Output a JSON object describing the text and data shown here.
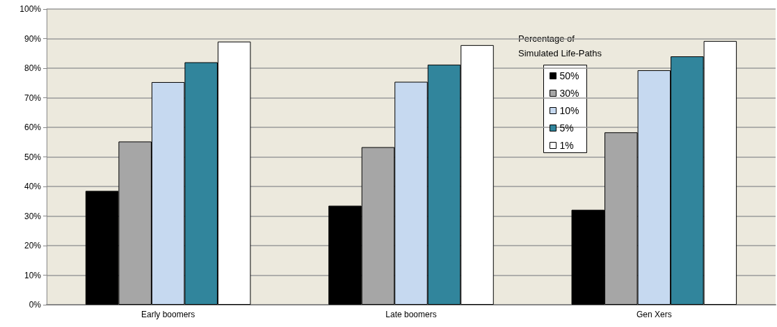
{
  "chart_data": {
    "type": "bar",
    "categories": [
      "Early boomers",
      "Late boomers",
      "Gen Xers"
    ],
    "legend_title": "Percentage of Simulated Life-Paths",
    "series": [
      {
        "name": "50%",
        "color": "#000000",
        "values": [
          38.5,
          33.5,
          32.1
        ]
      },
      {
        "name": "30%",
        "color": "#a6a6a6",
        "values": [
          55.2,
          53.3,
          58.3
        ]
      },
      {
        "name": "10%",
        "color": "#c6d9f0",
        "values": [
          75.3,
          75.4,
          79.3
        ]
      },
      {
        "name": "5%",
        "color": "#31859c",
        "values": [
          82,
          81.2,
          84
        ]
      },
      {
        "name": "1%",
        "color": "#ffffff",
        "values": [
          89,
          87.8,
          89.2
        ]
      }
    ],
    "ylim": [
      0,
      100
    ],
    "yticks": [
      {
        "value": 0,
        "label": "0%"
      },
      {
        "value": 10,
        "label": "10%"
      },
      {
        "value": 20,
        "label": "20%"
      },
      {
        "value": 30,
        "label": "30%"
      },
      {
        "value": 40,
        "label": "40%"
      },
      {
        "value": 50,
        "label": "50%"
      },
      {
        "value": 60,
        "label": "60%"
      },
      {
        "value": 70,
        "label": "70%"
      },
      {
        "value": 80,
        "label": "80%"
      },
      {
        "value": 90,
        "label": "90%"
      },
      {
        "value": 100,
        "label": "100%"
      }
    ],
    "grid": "y",
    "legend": "top right"
  }
}
